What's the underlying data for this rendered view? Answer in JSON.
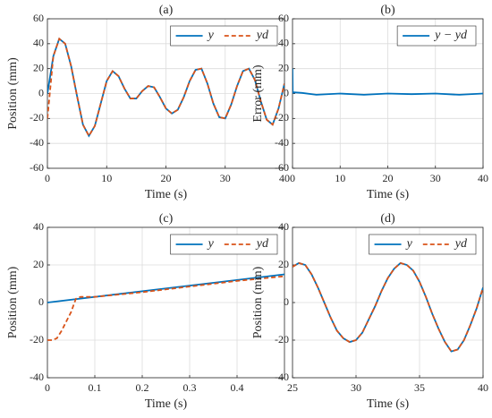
{
  "chart_data": [
    {
      "type": "line",
      "title": "(a)",
      "xlabel": "Time (s)",
      "ylabel": "Position (mm)",
      "xlim": [
        0,
        40
      ],
      "xticks": [
        0,
        10,
        20,
        30,
        40
      ],
      "ylim": [
        -60,
        60
      ],
      "yticks": [
        -60,
        -40,
        -20,
        0,
        20,
        40,
        60
      ],
      "grid": true,
      "legend": "upper right",
      "x": [
        0,
        1,
        2,
        3,
        4,
        5,
        6,
        7,
        8,
        9,
        10,
        11,
        12,
        13,
        14,
        15,
        16,
        17,
        18,
        19,
        20,
        21,
        22,
        23,
        24,
        25,
        26,
        27,
        28,
        29,
        30,
        31,
        32,
        33,
        34,
        35,
        36,
        37,
        38,
        39,
        40
      ],
      "series": [
        {
          "name": "y",
          "color": "#0072bd",
          "linestyle": "solid",
          "values": [
            0,
            30,
            44,
            40,
            22,
            -2,
            -25,
            -34,
            -26,
            -8,
            10,
            18,
            14,
            4,
            -4,
            -4,
            2,
            6,
            5,
            -3,
            -12,
            -16,
            -13,
            -3,
            10,
            19,
            20,
            8,
            -8,
            -19,
            -20,
            -9,
            6,
            18,
            20,
            11,
            -6,
            -21,
            -25,
            -12,
            8
          ]
        },
        {
          "name": "yd",
          "color": "#d95319",
          "linestyle": "dashed",
          "values": [
            -20,
            30,
            44,
            40,
            22,
            -2,
            -25,
            -34,
            -26,
            -8,
            10,
            18,
            14,
            4,
            -4,
            -4,
            2,
            6,
            5,
            -3,
            -12,
            -16,
            -13,
            -3,
            10,
            19,
            20,
            8,
            -8,
            -19,
            -20,
            -9,
            6,
            18,
            20,
            11,
            -6,
            -21,
            -25,
            -12,
            8
          ]
        }
      ]
    },
    {
      "type": "line",
      "title": "(b)",
      "xlabel": "Time (s)",
      "ylabel": "Error (mm)",
      "xlim": [
        0,
        40
      ],
      "xticks": [
        0,
        10,
        20,
        30,
        40
      ],
      "ylim": [
        -60,
        60
      ],
      "yticks": [
        -60,
        -40,
        -20,
        0,
        20,
        40,
        60
      ],
      "grid": true,
      "legend": "upper right",
      "x": [
        0,
        0.05,
        0.1,
        2,
        5,
        10,
        15,
        20,
        25,
        30,
        35,
        40
      ],
      "series": [
        {
          "name": "y − yd",
          "color": "#0072bd",
          "linestyle": "solid",
          "values": [
            20,
            0,
            1,
            0.5,
            -1,
            0,
            -1,
            0,
            -0.5,
            0,
            -1,
            0
          ]
        }
      ]
    },
    {
      "type": "line",
      "title": "(c)",
      "xlabel": "Time (s)",
      "ylabel": "Position (mm)",
      "xlim": [
        0,
        0.5
      ],
      "xticks": [
        0,
        0.1,
        0.2,
        0.3,
        0.4
      ],
      "ylim": [
        -40,
        40
      ],
      "yticks": [
        -40,
        -20,
        0,
        20,
        40
      ],
      "grid": true,
      "legend": "upper right",
      "series": [
        {
          "name": "y",
          "color": "#0072bd",
          "linestyle": "solid",
          "x": [
            0,
            0.5
          ],
          "values": [
            0,
            15
          ]
        },
        {
          "name": "yd",
          "color": "#d95319",
          "linestyle": "dashed",
          "x": [
            0,
            0.01,
            0.02,
            0.03,
            0.04,
            0.05,
            0.06,
            0.07,
            0.1,
            0.2,
            0.3,
            0.4,
            0.5
          ],
          "values": [
            -20,
            -20,
            -19,
            -15,
            -10,
            -5,
            2,
            3,
            3,
            5.5,
            8.5,
            11.5,
            14
          ]
        }
      ]
    },
    {
      "type": "line",
      "title": "(d)",
      "xlabel": "Time (s)",
      "ylabel": "Position (mm)",
      "xlim": [
        25,
        40
      ],
      "xticks": [
        25,
        30,
        35,
        40
      ],
      "ylim": [
        -40,
        40
      ],
      "yticks": [
        -40,
        -20,
        0,
        20,
        40
      ],
      "grid": true,
      "legend": "upper right",
      "x": [
        25,
        25.5,
        26,
        26.5,
        27,
        27.5,
        28,
        28.5,
        29,
        29.5,
        30,
        30.5,
        31,
        31.5,
        32,
        32.5,
        33,
        33.5,
        34,
        34.5,
        35,
        35.5,
        36,
        36.5,
        37,
        37.5,
        38,
        38.5,
        39,
        39.5,
        40
      ],
      "series": [
        {
          "name": "y",
          "color": "#0072bd",
          "linestyle": "solid",
          "values": [
            19,
            21,
            20,
            15,
            8,
            0,
            -8,
            -15,
            -19,
            -21,
            -20,
            -16,
            -9,
            -2,
            6,
            13,
            18,
            21,
            20,
            17,
            11,
            3,
            -6,
            -14,
            -21,
            -26,
            -25,
            -20,
            -12,
            -3,
            8
          ]
        },
        {
          "name": "yd",
          "color": "#d95319",
          "linestyle": "dashed",
          "values": [
            19,
            21,
            20,
            15,
            8,
            0,
            -8,
            -15,
            -19,
            -21,
            -20,
            -16,
            -9,
            -2,
            6,
            13,
            18,
            21,
            20,
            17,
            11,
            3,
            -6,
            -14,
            -21,
            -26,
            -25,
            -20,
            -12,
            -3,
            8
          ]
        }
      ]
    }
  ]
}
